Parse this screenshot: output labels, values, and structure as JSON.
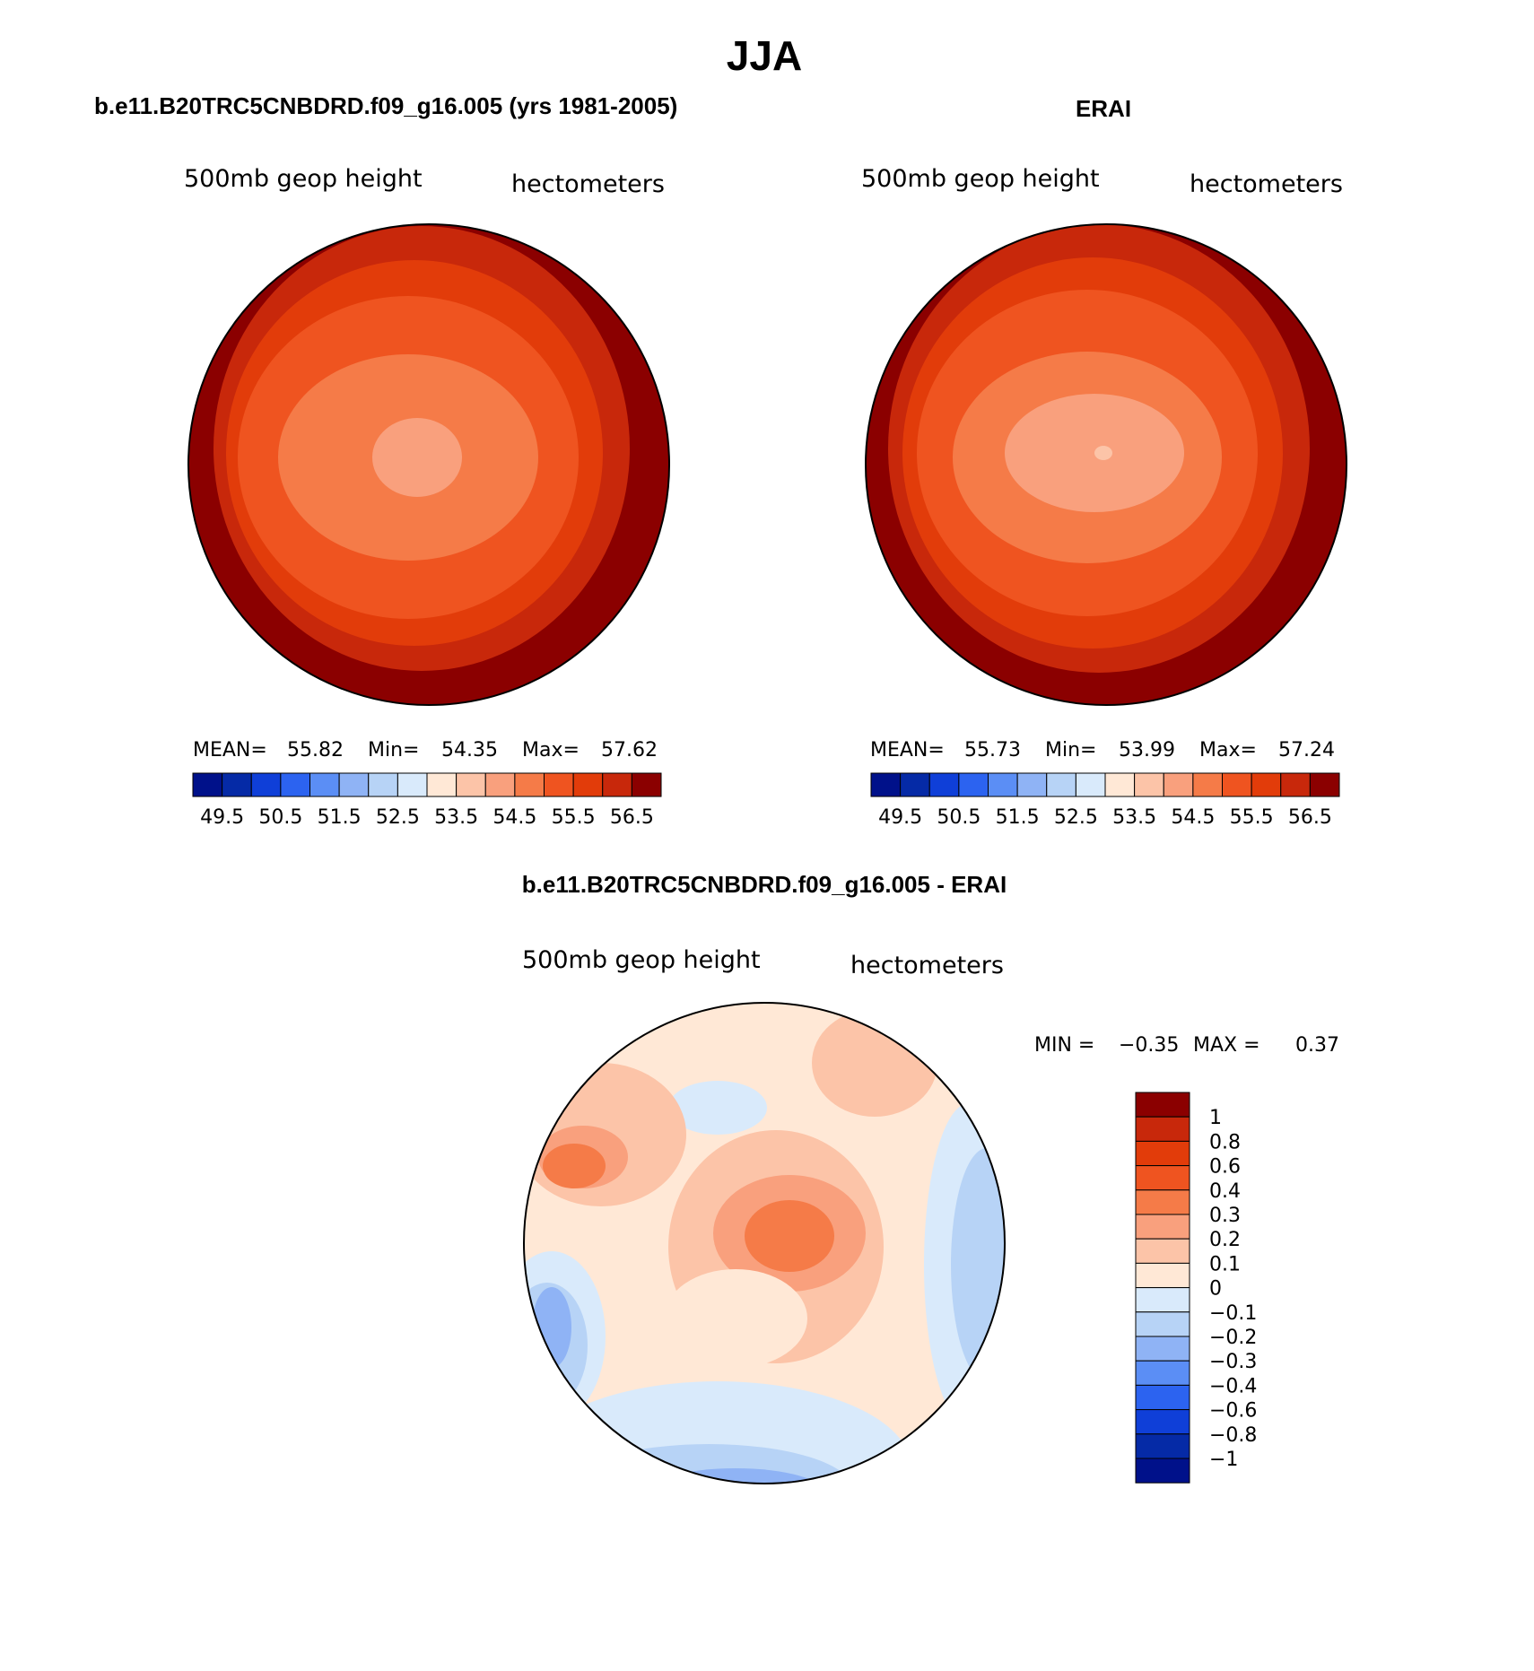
{
  "page_title": "JJA",
  "colors": {
    "pos": [
      "#ffe8d6",
      "#fcc4a8",
      "#f9a07d",
      "#f57b48",
      "#ef5420",
      "#e23c0a",
      "#c8280b",
      "#8b0000"
    ],
    "neg": [
      "#d9eafb",
      "#b7d3f6",
      "#8fb3f5",
      "#5b8ef5",
      "#2c63f0",
      "#0f3fd8",
      "#052aa6",
      "#00118a"
    ],
    "coast": "#000000"
  },
  "panels": [
    {
      "title": "b.e11.B20TRC5CNBDRD.f09_g16.005 (yrs 1981-2005)",
      "var_label": "500mb geop height",
      "units": "hectometers",
      "stats": {
        "mean_label": "MEAN=",
        "mean": "55.82",
        "min_label": "Min=",
        "min": "54.35",
        "max_label": "Max=",
        "max": "57.62"
      },
      "colorbar_labels": [
        "49.5",
        "50.5",
        "51.5",
        "52.5",
        "53.5",
        "54.5",
        "55.5",
        "56.5"
      ]
    },
    {
      "title": "ERAI",
      "var_label": "500mb geop height",
      "units": "hectometers",
      "stats": {
        "mean_label": "MEAN=",
        "mean": "55.73",
        "min_label": "Min=",
        "min": "53.99",
        "max_label": "Max=",
        "max": "57.24"
      },
      "colorbar_labels": [
        "49.5",
        "50.5",
        "51.5",
        "52.5",
        "53.5",
        "54.5",
        "55.5",
        "56.5"
      ]
    }
  ],
  "diff_panel": {
    "title": "b.e11.B20TRC5CNBDRD.f09_g16.005 - ERAI",
    "var_label": "500mb geop height",
    "units": "hectometers",
    "minmax": {
      "min_label": "MIN =",
      "min": "−0.35",
      "max_label": "MAX =",
      "max": "0.37"
    },
    "colorbar_labels": [
      "1",
      "0.8",
      "0.6",
      "0.4",
      "0.3",
      "0.2",
      "0.1",
      "0",
      "−0.1",
      "−0.2",
      "−0.3",
      "−0.4",
      "−0.6",
      "−0.8",
      "−1"
    ]
  }
}
